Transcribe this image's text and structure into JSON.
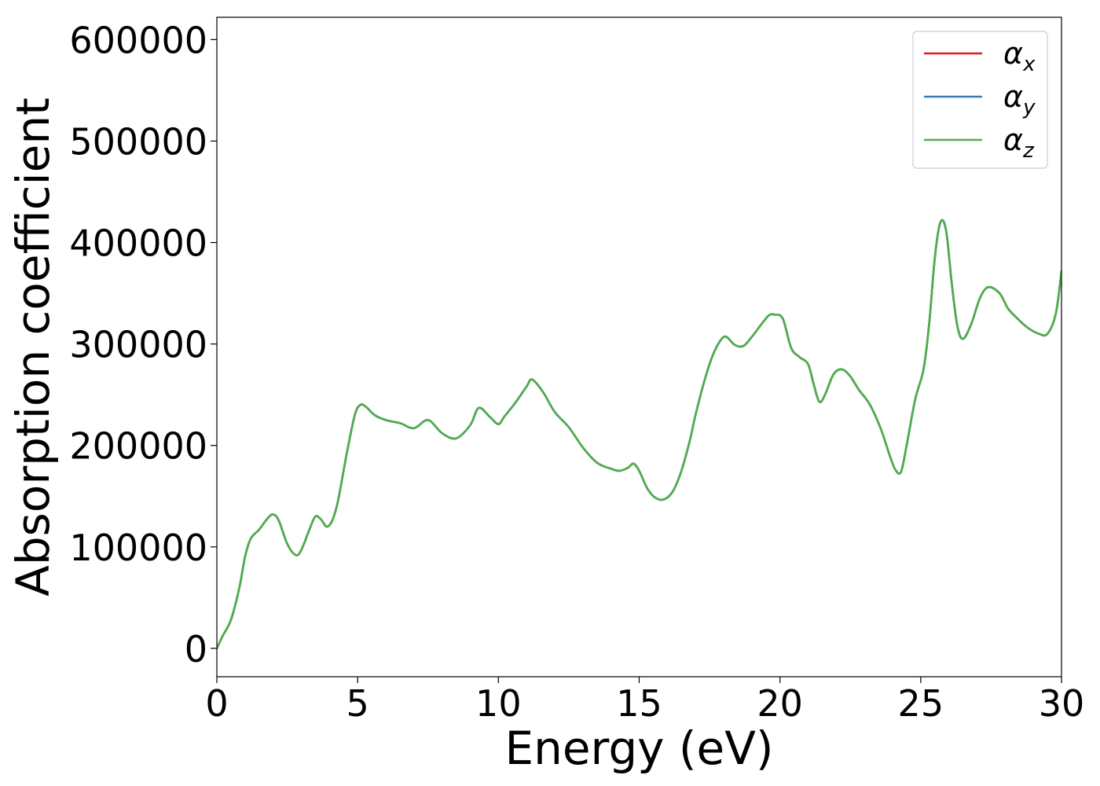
{
  "chart_data": {
    "type": "line",
    "xlabel": "Energy (eV)",
    "ylabel": "Absorption coefficient",
    "xlim": [
      0,
      30
    ],
    "ylim": [
      -28000,
      622000
    ],
    "xticks": [
      0,
      5,
      10,
      15,
      20,
      25,
      30
    ],
    "yticks": [
      0,
      100000,
      200000,
      300000,
      400000,
      500000,
      600000
    ],
    "grid": false,
    "legend_position": "top-right",
    "x": [
      0,
      0.2,
      0.5,
      0.8,
      1.0,
      1.2,
      1.5,
      1.8,
      2.0,
      2.2,
      2.5,
      2.8,
      3.0,
      3.3,
      3.5,
      3.7,
      3.9,
      4.1,
      4.3,
      4.6,
      4.9,
      5.1,
      5.3,
      5.6,
      6.0,
      6.5,
      7.0,
      7.5,
      8.0,
      8.5,
      9.0,
      9.3,
      9.7,
      10.0,
      10.2,
      10.6,
      11.0,
      11.2,
      11.6,
      12.0,
      12.5,
      13.0,
      13.5,
      14.0,
      14.3,
      14.6,
      14.8,
      15.0,
      15.3,
      15.6,
      15.9,
      16.2,
      16.5,
      16.8,
      17.0,
      17.3,
      17.6,
      17.9,
      18.1,
      18.4,
      18.7,
      19.0,
      19.3,
      19.6,
      19.8,
      20.1,
      20.4,
      20.7,
      21.0,
      21.2,
      21.4,
      21.6,
      21.9,
      22.2,
      22.5,
      22.8,
      23.2,
      23.6,
      23.9,
      24.1,
      24.3,
      24.5,
      24.8,
      25.1,
      25.3,
      25.5,
      25.7,
      25.9,
      26.1,
      26.3,
      26.5,
      26.8,
      27.1,
      27.4,
      27.8,
      28.1,
      28.4,
      28.8,
      29.2,
      29.5,
      29.8,
      30.0
    ],
    "series": [
      {
        "name": "α_x",
        "color": "#e41a1c",
        "values": [
          0,
          12000,
          28000,
          60000,
          90000,
          108000,
          117000,
          128000,
          132000,
          126000,
          103000,
          92000,
          97000,
          118000,
          130000,
          127000,
          120000,
          126000,
          145000,
          190000,
          230000,
          240000,
          238000,
          230000,
          225000,
          222000,
          217000,
          225000,
          212000,
          207000,
          220000,
          237000,
          228000,
          221000,
          228000,
          242000,
          258000,
          265000,
          252000,
          233000,
          218000,
          198000,
          183000,
          177000,
          175000,
          178000,
          182000,
          175000,
          157000,
          148000,
          147000,
          155000,
          175000,
          205000,
          230000,
          262000,
          288000,
          304000,
          307000,
          299000,
          298000,
          307000,
          318000,
          328000,
          329000,
          325000,
          296000,
          287000,
          280000,
          260000,
          243000,
          250000,
          270000,
          275000,
          268000,
          255000,
          240000,
          215000,
          190000,
          176000,
          174000,
          200000,
          245000,
          275000,
          320000,
          385000,
          420000,
          412000,
          360000,
          318000,
          305000,
          320000,
          345000,
          356000,
          350000,
          335000,
          326000,
          316000,
          310000,
          310000,
          330000,
          372000
        ]
      },
      {
        "name": "α_y",
        "color": "#377eb8",
        "values": [
          0,
          12000,
          28000,
          60000,
          90000,
          108000,
          117000,
          128000,
          132000,
          126000,
          103000,
          92000,
          97000,
          118000,
          130000,
          127000,
          120000,
          126000,
          145000,
          190000,
          230000,
          240000,
          238000,
          230000,
          225000,
          222000,
          217000,
          225000,
          212000,
          207000,
          220000,
          237000,
          228000,
          221000,
          228000,
          242000,
          258000,
          265000,
          252000,
          233000,
          218000,
          198000,
          183000,
          177000,
          175000,
          178000,
          182000,
          175000,
          157000,
          148000,
          147000,
          155000,
          175000,
          205000,
          230000,
          262000,
          288000,
          304000,
          307000,
          299000,
          298000,
          307000,
          318000,
          328000,
          329000,
          325000,
          296000,
          287000,
          280000,
          260000,
          243000,
          250000,
          270000,
          275000,
          268000,
          255000,
          240000,
          215000,
          190000,
          176000,
          174000,
          200000,
          245000,
          275000,
          320000,
          385000,
          420000,
          412000,
          360000,
          318000,
          305000,
          320000,
          345000,
          356000,
          350000,
          335000,
          326000,
          316000,
          310000,
          310000,
          330000,
          372000
        ]
      },
      {
        "name": "α_z",
        "color": "#4daf4a",
        "values": [
          0,
          12000,
          28000,
          60000,
          90000,
          108000,
          117000,
          128000,
          132000,
          126000,
          103000,
          92000,
          97000,
          118000,
          130000,
          127000,
          120000,
          126000,
          145000,
          190000,
          230000,
          240000,
          238000,
          230000,
          225000,
          222000,
          217000,
          225000,
          212000,
          207000,
          220000,
          237000,
          228000,
          221000,
          228000,
          242000,
          258000,
          265000,
          252000,
          233000,
          218000,
          198000,
          183000,
          177000,
          175000,
          178000,
          182000,
          175000,
          157000,
          148000,
          147000,
          155000,
          175000,
          205000,
          230000,
          262000,
          288000,
          304000,
          307000,
          299000,
          298000,
          307000,
          318000,
          328000,
          329000,
          325000,
          296000,
          287000,
          280000,
          260000,
          243000,
          250000,
          270000,
          275000,
          268000,
          255000,
          240000,
          215000,
          190000,
          176000,
          174000,
          200000,
          245000,
          275000,
          320000,
          385000,
          420000,
          412000,
          360000,
          318000,
          305000,
          320000,
          345000,
          356000,
          350000,
          335000,
          326000,
          316000,
          310000,
          310000,
          330000,
          372000
        ]
      }
    ]
  }
}
